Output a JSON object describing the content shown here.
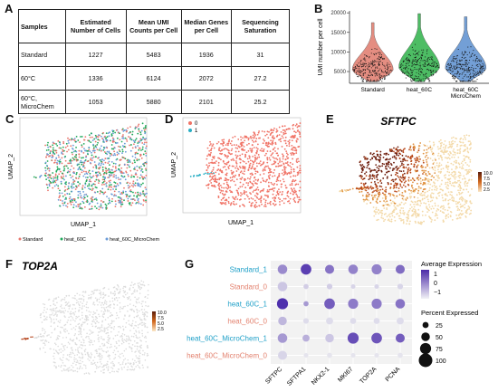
{
  "panels": {
    "a": "A",
    "b": "B",
    "c": "C",
    "d": "D",
    "e": "E",
    "f": "F",
    "g": "G"
  },
  "table": {
    "headers": [
      "Samples",
      "Estimated Number of Cells",
      "Mean UMI Counts per Cell",
      "Median Genes per Cell",
      "Sequencing Saturation"
    ],
    "rows": [
      [
        "Standard",
        "1227",
        "5483",
        "1936",
        "31"
      ],
      [
        "60°C",
        "1336",
        "6124",
        "2072",
        "27.2"
      ],
      [
        "60°C, MicroChem",
        "1053",
        "5880",
        "2101",
        "25.2"
      ]
    ]
  },
  "chart_data": [
    {
      "type": "violin",
      "ylabel": "UMI number per cell",
      "yticks": [
        5000,
        10000,
        15000,
        20000
      ],
      "ylim": [
        2000,
        20500
      ],
      "categories": [
        "Standard",
        "heat_60C",
        "heat_60C MicroChem"
      ],
      "colors": [
        "#e07a6c",
        "#2fb24a",
        "#5b8fd0"
      ],
      "medians": [
        5483,
        6124,
        5880
      ],
      "max": [
        17500,
        19800,
        19000
      ]
    },
    {
      "type": "scatter",
      "name": "umap-c",
      "xlabel": "UMAP_1",
      "ylabel": "UMAP_2",
      "legend": [
        "Standard",
        "heat_60C",
        "heat_60C_MicroChem"
      ],
      "colors": [
        "#e8766d",
        "#1fa85a",
        "#6a9bd8"
      ]
    },
    {
      "type": "scatter",
      "name": "umap-d",
      "xlabel": "UMAP_1",
      "ylabel": "UMAP_2",
      "legend": [
        "0",
        "1"
      ],
      "colors": [
        "#f07366",
        "#29aec4"
      ]
    },
    {
      "type": "scatter",
      "name": "feature-e",
      "title": "SFTPC",
      "colorbar": [
        "10.0",
        "7.5",
        "5.0",
        "2.5"
      ]
    },
    {
      "type": "scatter",
      "name": "feature-f",
      "title": "TOP2A",
      "colorbar": [
        "10.0",
        "7.5",
        "5.0",
        "2.5"
      ]
    },
    {
      "type": "dotplot",
      "x": [
        "SFTPC",
        "SFTPA1",
        "NKX2-1",
        "MKI67",
        "TOP2A",
        "PCNA"
      ],
      "y": [
        "Standard_1",
        "Standard_0",
        "heat_60C_1",
        "heat_60C_0",
        "heat_60C_MicroChem_1",
        "heat_60C_MicroChem_0"
      ],
      "ycolors": [
        "#1fa0c8",
        "#e3826f",
        "#1fa0c8",
        "#e3826f",
        "#1fa0c8",
        "#e3826f"
      ],
      "avg_expression": [
        [
          0.3,
          1.3,
          0.6,
          0.4,
          0.4,
          0.7
        ],
        [
          -0.5,
          -0.6,
          -0.6,
          -0.7,
          -0.7,
          -0.7
        ],
        [
          1.5,
          0.1,
          0.9,
          0.5,
          0.5,
          0.6
        ],
        [
          -0.3,
          -0.8,
          -0.8,
          -0.8,
          -0.8,
          -0.8
        ],
        [
          0.1,
          -0.2,
          -0.5,
          1.1,
          1.0,
          0.9
        ],
        [
          -0.7,
          -0.9,
          -0.9,
          -0.9,
          -0.9,
          -0.9
        ]
      ],
      "pct_expressed": [
        [
          60,
          70,
          55,
          60,
          65,
          55
        ],
        [
          60,
          15,
          20,
          10,
          10,
          20
        ],
        [
          75,
          15,
          70,
          65,
          65,
          60
        ],
        [
          50,
          20,
          35,
          25,
          25,
          35
        ],
        [
          60,
          35,
          50,
          75,
          70,
          55
        ],
        [
          55,
          10,
          15,
          10,
          10,
          15
        ]
      ],
      "legend_color_title": "Average Expression",
      "legend_color_ticks": [
        "1",
        "0",
        "−1"
      ],
      "legend_size_title": "Percent Expressed",
      "legend_size_values": [
        "25",
        "50",
        "75",
        "100"
      ]
    }
  ]
}
